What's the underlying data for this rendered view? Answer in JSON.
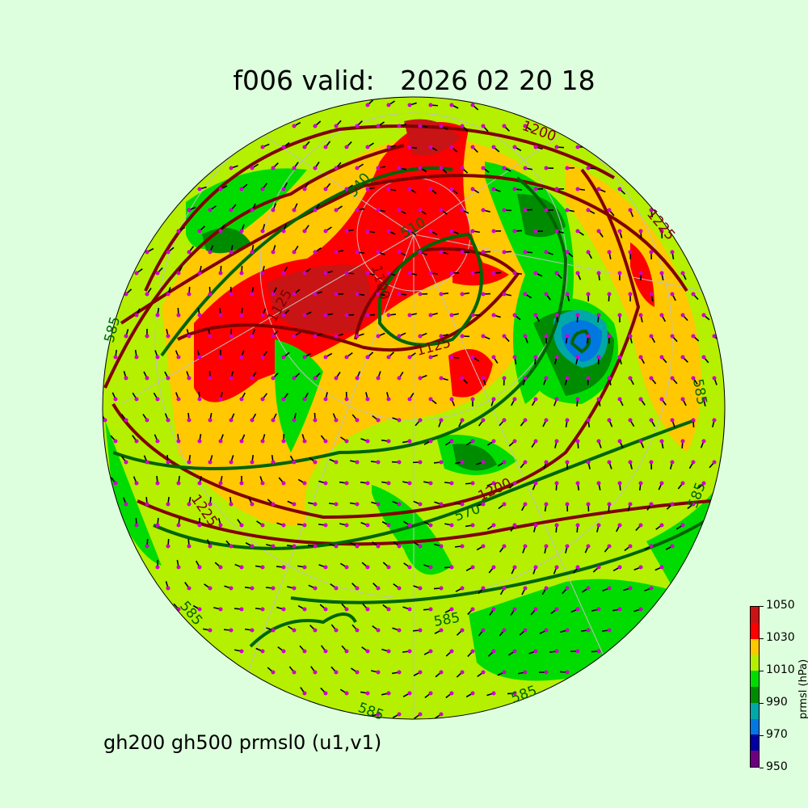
{
  "title": "f006 valid:   2026 02 20 18",
  "subtitle": "gh200 gh500 prmsl0 (u1,v1)",
  "colorbar": {
    "label": "prmsl (hPa)",
    "ticks": [
      "950",
      "970",
      "990",
      "1010",
      "1030",
      "1050"
    ],
    "colors": [
      "#6e0080",
      "#0000a0",
      "#0078e0",
      "#00a8a8",
      "#008c00",
      "#00dc00",
      "#b4f000",
      "#ffc800",
      "#ff0000",
      "#c81414"
    ]
  },
  "layers": {
    "gh500_color": "#006400",
    "gh200_color": "#800000",
    "wind_barb_color": "#000000",
    "wind_dot_color": "#cc00cc"
  },
  "contour_labels": {
    "l1200_top": "1200",
    "l1225_ne": "1225",
    "l540": "540",
    "l510": "510",
    "l1100": "1100",
    "l1125": "1125",
    "l1125b": "1125",
    "l585_w": "585",
    "l585_e": "585",
    "l1200_mid": "1200",
    "l570": "570",
    "l1225_sw": "1225",
    "l585_s": "585",
    "l585_sw": "585",
    "l585_se": "585",
    "l585_bot": "585",
    "l585_se2": "585"
  }
}
